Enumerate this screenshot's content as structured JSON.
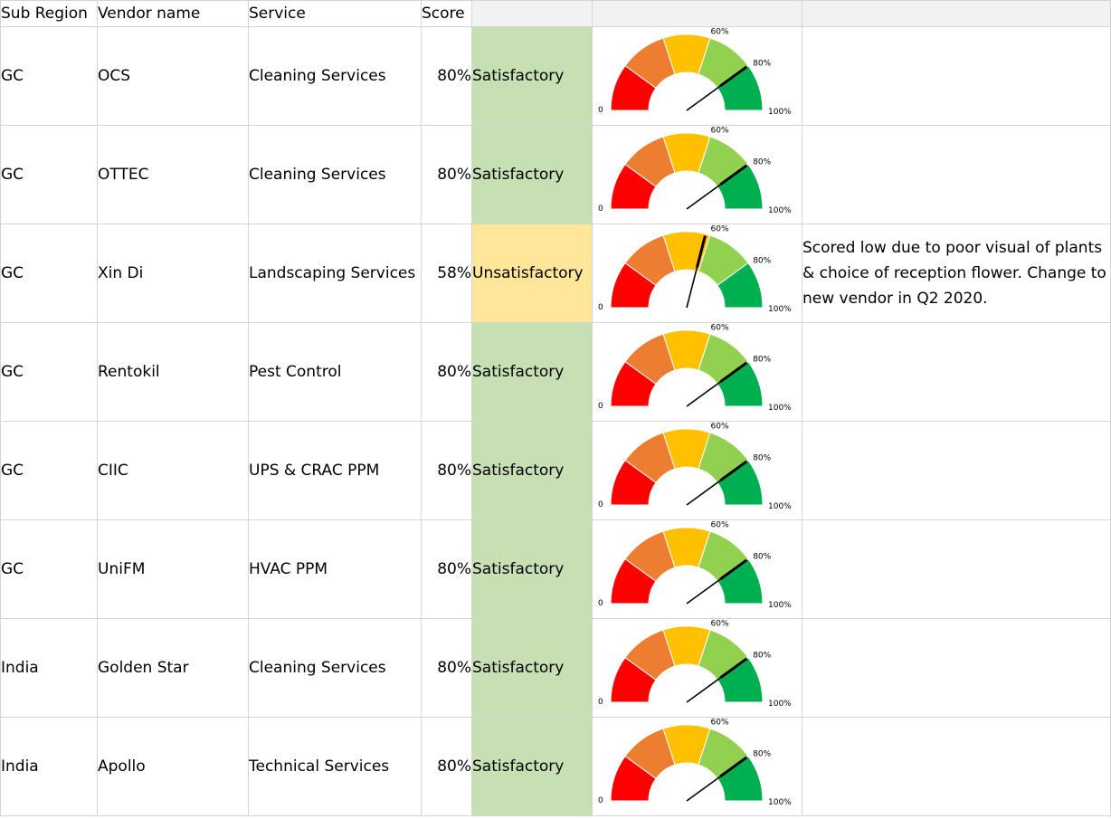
{
  "headers": [
    "Sub Region",
    "Vendor name",
    "Service",
    "Score",
    "",
    "",
    ""
  ],
  "gauge_labels": {
    "min": "0",
    "mid": "60%",
    "high": "80%",
    "max": "100%"
  },
  "gauge_colors": [
    "#ff0000",
    "#ed7d31",
    "#ffc000",
    "#92d050",
    "#00b050"
  ],
  "rows": [
    {
      "sub_region": "GC",
      "vendor": "OCS",
      "service": "Cleaning Services",
      "score": "80%",
      "value": 80,
      "rating": "Satisfactory",
      "rating_class": "sat",
      "comment": ""
    },
    {
      "sub_region": "GC",
      "vendor": "OTTEC",
      "service": "Cleaning Services",
      "score": "80%",
      "value": 80,
      "rating": "Satisfactory",
      "rating_class": "sat",
      "comment": ""
    },
    {
      "sub_region": "GC",
      "vendor": "Xin Di",
      "service": "Landscaping Services",
      "score": "58%",
      "value": 58,
      "rating": "Unsatisfactory",
      "rating_class": "unsat",
      "comment": "Scored low due to poor visual of plants & choice of reception flower. Change to new vendor in Q2 2020."
    },
    {
      "sub_region": "GC",
      "vendor": "Rentokil",
      "service": "Pest Control",
      "score": "80%",
      "value": 80,
      "rating": "Satisfactory",
      "rating_class": "sat",
      "comment": ""
    },
    {
      "sub_region": "GC",
      "vendor": "CIIC",
      "service": "UPS & CRAC PPM",
      "score": "80%",
      "value": 80,
      "rating": "Satisfactory",
      "rating_class": "sat",
      "comment": ""
    },
    {
      "sub_region": "GC",
      "vendor": "UniFM",
      "service": "HVAC PPM",
      "score": "80%",
      "value": 80,
      "rating": "Satisfactory",
      "rating_class": "sat",
      "comment": ""
    },
    {
      "sub_region": "India",
      "vendor": "Golden Star",
      "service": "Cleaning Services",
      "score": "80%",
      "value": 80,
      "rating": "Satisfactory",
      "rating_class": "sat",
      "comment": ""
    },
    {
      "sub_region": "India",
      "vendor": "Apollo",
      "service": "Technical Services",
      "score": "80%",
      "value": 80,
      "rating": "Satisfactory",
      "rating_class": "sat",
      "comment": ""
    }
  ]
}
